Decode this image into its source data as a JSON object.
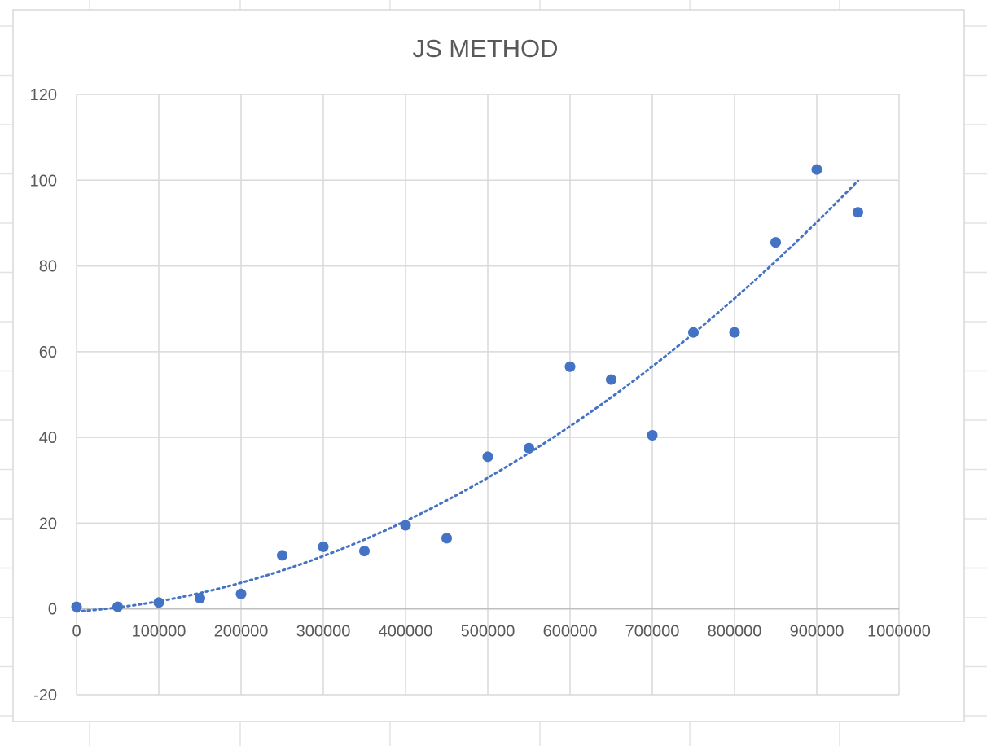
{
  "chart_data": {
    "type": "scatter",
    "title": "JS METHOD",
    "xlabel": "",
    "ylabel": "",
    "xlim": [
      0,
      1000000
    ],
    "ylim": [
      -20,
      120
    ],
    "x_ticks": [
      0,
      100000,
      200000,
      300000,
      400000,
      500000,
      600000,
      700000,
      800000,
      900000,
      1000000
    ],
    "x_tick_labels": [
      "0",
      "100000",
      "200000",
      "300000",
      "400000",
      "500000",
      "600000",
      "700000",
      "800000",
      "900000",
      "1000000"
    ],
    "y_ticks": [
      -20,
      0,
      20,
      40,
      60,
      80,
      100,
      120
    ],
    "y_tick_labels": [
      "-20",
      "0",
      "20",
      "40",
      "60",
      "80",
      "100",
      "120"
    ],
    "grid": true,
    "legend": "none",
    "marker_color": "#4472C4",
    "trendline": {
      "type": "polynomial",
      "style": "dotted",
      "color": "#4472C4",
      "x_range": [
        0,
        950000
      ]
    },
    "series": [
      {
        "points": [
          {
            "x": 0,
            "y": 0.5
          },
          {
            "x": 50000,
            "y": 0.5
          },
          {
            "x": 100000,
            "y": 1.5
          },
          {
            "x": 150000,
            "y": 2.5
          },
          {
            "x": 200000,
            "y": 3.5
          },
          {
            "x": 250000,
            "y": 12.5
          },
          {
            "x": 300000,
            "y": 14.5
          },
          {
            "x": 350000,
            "y": 13.5
          },
          {
            "x": 400000,
            "y": 19.5
          },
          {
            "x": 450000,
            "y": 16.5
          },
          {
            "x": 500000,
            "y": 35.5
          },
          {
            "x": 550000,
            "y": 37.5
          },
          {
            "x": 600000,
            "y": 56.5
          },
          {
            "x": 650000,
            "y": 53.5
          },
          {
            "x": 700000,
            "y": 40.5
          },
          {
            "x": 750000,
            "y": 64.5
          },
          {
            "x": 800000,
            "y": 64.5
          },
          {
            "x": 850000,
            "y": 85.5
          },
          {
            "x": 900000,
            "y": 102.5
          },
          {
            "x": 950000,
            "y": 92.5
          }
        ]
      }
    ]
  }
}
